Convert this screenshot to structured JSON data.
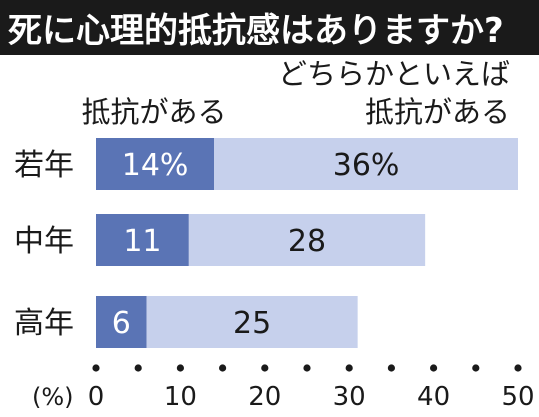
{
  "title": "死に心理的抵抗感はありますか?",
  "chart_data": {
    "type": "bar",
    "orientation": "horizontal",
    "stacked": true,
    "title": "死に心理的抵抗感はありますか?",
    "unit_label": "(%)",
    "categories": [
      "若年",
      "中年",
      "高年"
    ],
    "series": [
      {
        "name": "抵抗がある",
        "values": [
          14,
          11,
          6
        ],
        "value_labels": [
          "14%",
          "11",
          "6"
        ],
        "color": "#5a74b5"
      },
      {
        "name": "どちらかといえば抵抗がある",
        "name_lines": [
          "どちらかといえば",
          "抵抗がある"
        ],
        "values": [
          36,
          28,
          25
        ],
        "value_labels": [
          "36%",
          "28",
          "25"
        ],
        "color": "#c6d0ec"
      }
    ],
    "xlim": [
      0,
      50
    ],
    "xticks": [
      0,
      10,
      20,
      30,
      40,
      50
    ],
    "minor_ticks": [
      5,
      15,
      25,
      35,
      45
    ],
    "grid": false,
    "legend": "top"
  },
  "colors": {
    "title_bg": "#1a1a1a",
    "title_text": "#ffffff",
    "series1": "#5a74b5",
    "series2": "#c6d0ec",
    "text": "#1a1a1a"
  }
}
